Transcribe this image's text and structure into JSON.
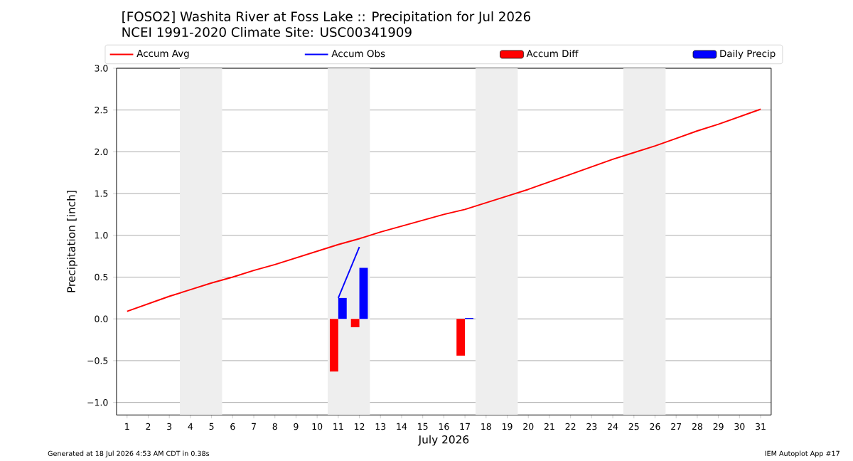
{
  "chart_data": {
    "type": "line",
    "title": "[FOSO2] Washita River at Foss Lake :: Precipitation for Jul 2026",
    "subtitle": "NCEI 1991-2020 Climate Site: USC00341909",
    "xlabel": "July 2026",
    "ylabel": "Precipitation [inch]",
    "x": [
      1,
      2,
      3,
      4,
      5,
      6,
      7,
      8,
      9,
      10,
      11,
      12,
      13,
      14,
      15,
      16,
      17,
      18,
      19,
      20,
      21,
      22,
      23,
      24,
      25,
      26,
      27,
      28,
      29,
      30,
      31
    ],
    "series": [
      {
        "name": "Accum Avg",
        "color": "#ff0000",
        "values": [
          0.09,
          0.18,
          0.27,
          0.35,
          0.43,
          0.5,
          0.58,
          0.65,
          0.73,
          0.81,
          0.89,
          0.96,
          1.04,
          1.11,
          1.18,
          1.25,
          1.31,
          1.39,
          1.47,
          1.55,
          1.64,
          1.73,
          1.82,
          1.91,
          1.99,
          2.07,
          2.16,
          2.25,
          2.33,
          2.42,
          2.51
        ]
      },
      {
        "name": "Accum Obs",
        "color": "#0000ff",
        "values": [
          null,
          null,
          null,
          null,
          null,
          null,
          null,
          null,
          null,
          null,
          0.25,
          0.86,
          null,
          null,
          null,
          null,
          null,
          null,
          null,
          null,
          null,
          null,
          null,
          null,
          null,
          null,
          null,
          null,
          null,
          null,
          null
        ]
      },
      {
        "name": "Accum Diff",
        "color": "#ff0000",
        "type": "bar",
        "values": [
          null,
          null,
          null,
          null,
          null,
          null,
          null,
          null,
          null,
          null,
          -0.63,
          -0.1,
          null,
          null,
          null,
          null,
          -0.44,
          null,
          null,
          null,
          null,
          null,
          null,
          null,
          null,
          null,
          null,
          null,
          null,
          null,
          null
        ]
      },
      {
        "name": "Daily Precip",
        "color": "#0000ff",
        "type": "bar",
        "values": [
          null,
          null,
          null,
          null,
          null,
          null,
          null,
          null,
          null,
          null,
          0.25,
          0.61,
          null,
          null,
          null,
          null,
          0.01,
          null,
          null,
          null,
          null,
          null,
          null,
          null,
          null,
          null,
          null,
          null,
          null,
          null,
          null
        ]
      }
    ],
    "xlim": [
      0.5,
      31.5
    ],
    "ylim": [
      -1.15,
      3.0
    ],
    "xticks": [
      1,
      2,
      3,
      4,
      5,
      6,
      7,
      8,
      9,
      10,
      11,
      12,
      13,
      14,
      15,
      16,
      17,
      18,
      19,
      20,
      21,
      22,
      23,
      24,
      25,
      26,
      27,
      28,
      29,
      30,
      31
    ],
    "yticks": [
      {
        "value": -1.0,
        "label": "−1.0"
      },
      {
        "value": -0.5,
        "label": "−0.5"
      },
      {
        "value": 0,
        "label": "0.0"
      },
      {
        "value": 0.5,
        "label": "0.5"
      },
      {
        "value": 1.0,
        "label": "1.0"
      },
      {
        "value": 1.5,
        "label": "1.5"
      },
      {
        "value": 2.0,
        "label": "2.0"
      },
      {
        "value": 2.5,
        "label": "2.5"
      },
      {
        "value": 3.0,
        "label": "3.0"
      }
    ],
    "bands": [
      {
        "axis": "x",
        "from": 3.5,
        "to": 5.5,
        "color": "#eeeeee"
      },
      {
        "axis": "x",
        "from": 10.5,
        "to": 12.5,
        "color": "#eeeeee"
      },
      {
        "axis": "x",
        "from": 17.5,
        "to": 19.5,
        "color": "#eeeeee"
      },
      {
        "axis": "x",
        "from": 24.5,
        "to": 26.5,
        "color": "#eeeeee"
      }
    ],
    "grid": "y",
    "legend": "top",
    "annotations": [
      "Generated at 18 Jul 2026 4:53 AM CDT in 0.38s",
      "IEM Autoplot App #17"
    ]
  }
}
